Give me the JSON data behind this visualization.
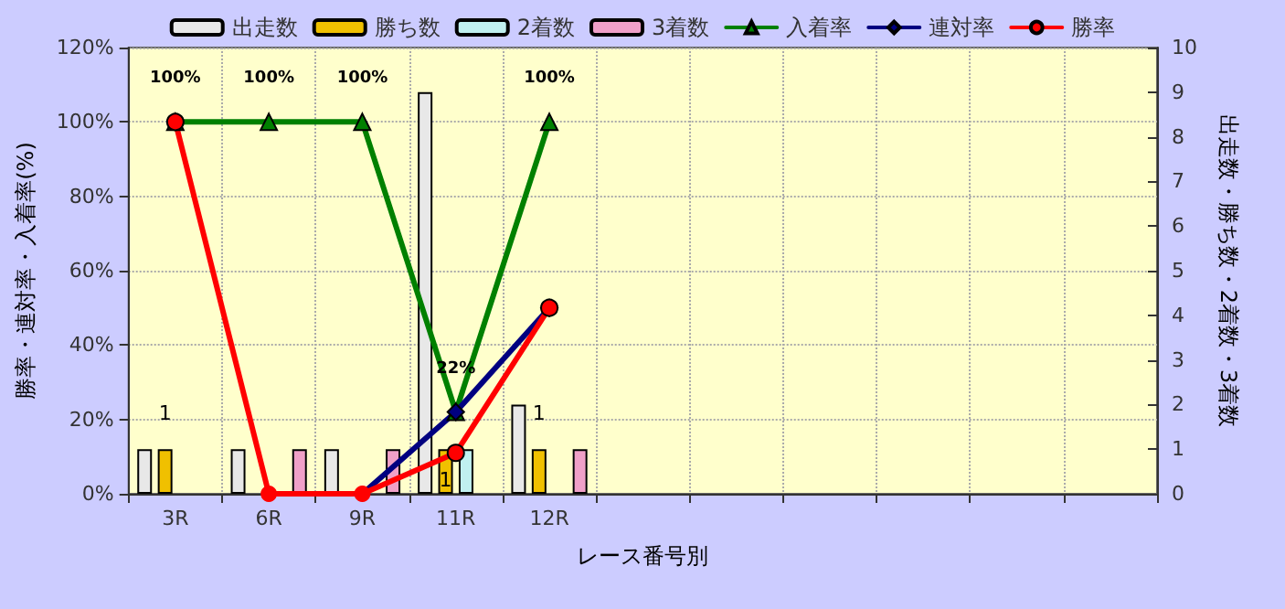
{
  "chart_data": {
    "type": "bar",
    "xlabel": "レース番号別",
    "ylabel": "勝率・連対率・入着率(%)",
    "y2label": "出走数・勝ち数・2着数・3着数",
    "categories": [
      "3R",
      "6R",
      "9R",
      "11R",
      "12R",
      null,
      null,
      null,
      null,
      null,
      null
    ],
    "series": [
      {
        "name": "出走数",
        "axis": "y2",
        "color": "#e8e8e8",
        "values": [
          1,
          1,
          1,
          9,
          2,
          null,
          null,
          null,
          null,
          null,
          null
        ]
      },
      {
        "name": "勝ち数",
        "axis": "y2",
        "color": "#f0c000",
        "values": [
          1,
          0,
          0,
          1,
          1,
          null,
          null,
          null,
          null,
          null,
          null
        ],
        "value_labels": [
          "1",
          null,
          null,
          "1",
          "1",
          null,
          null,
          null,
          null,
          null,
          null
        ]
      },
      {
        "name": "2着数",
        "axis": "y2",
        "color": "#c0f0f0",
        "values": [
          0,
          0,
          0,
          1,
          0,
          null,
          null,
          null,
          null,
          null,
          null
        ]
      },
      {
        "name": "3着数",
        "axis": "y2",
        "color": "#f0a0c8",
        "values": [
          0,
          1,
          1,
          0,
          1,
          null,
          null,
          null,
          null,
          null,
          null
        ]
      },
      {
        "name": "入着率",
        "type": "line",
        "color": "#008000",
        "marker": "triangle",
        "values": [
          100,
          100,
          100,
          22,
          100,
          null,
          null,
          null,
          null,
          null,
          null
        ],
        "value_labels": [
          "100%",
          "100%",
          "100%",
          "22%",
          "100%",
          null,
          null,
          null,
          null,
          null,
          null
        ]
      },
      {
        "name": "連対率",
        "type": "line",
        "color": "#000080",
        "marker": "diamond",
        "values": [
          null,
          null,
          0,
          22,
          50,
          null,
          null,
          null,
          null,
          null,
          null
        ]
      },
      {
        "name": "勝率",
        "type": "line",
        "color": "#ff0000",
        "marker": "circle",
        "values": [
          100,
          0,
          0,
          11,
          50,
          null,
          null,
          null,
          null,
          null,
          null
        ]
      }
    ],
    "ylim": [
      0,
      120
    ],
    "yticks": [
      {
        "value": 0,
        "label": "0%"
      },
      {
        "value": 20,
        "label": "20%"
      },
      {
        "value": 40,
        "label": "40%"
      },
      {
        "value": 60,
        "label": "60%"
      },
      {
        "value": 80,
        "label": "80%"
      },
      {
        "value": 100,
        "label": "100%"
      },
      {
        "value": 120,
        "label": "120%"
      }
    ],
    "y2lim": [
      0,
      10
    ],
    "y2ticks": [
      0,
      1,
      2,
      3,
      4,
      5,
      6,
      7,
      8,
      9,
      10
    ],
    "grid": true,
    "legend": "top"
  }
}
